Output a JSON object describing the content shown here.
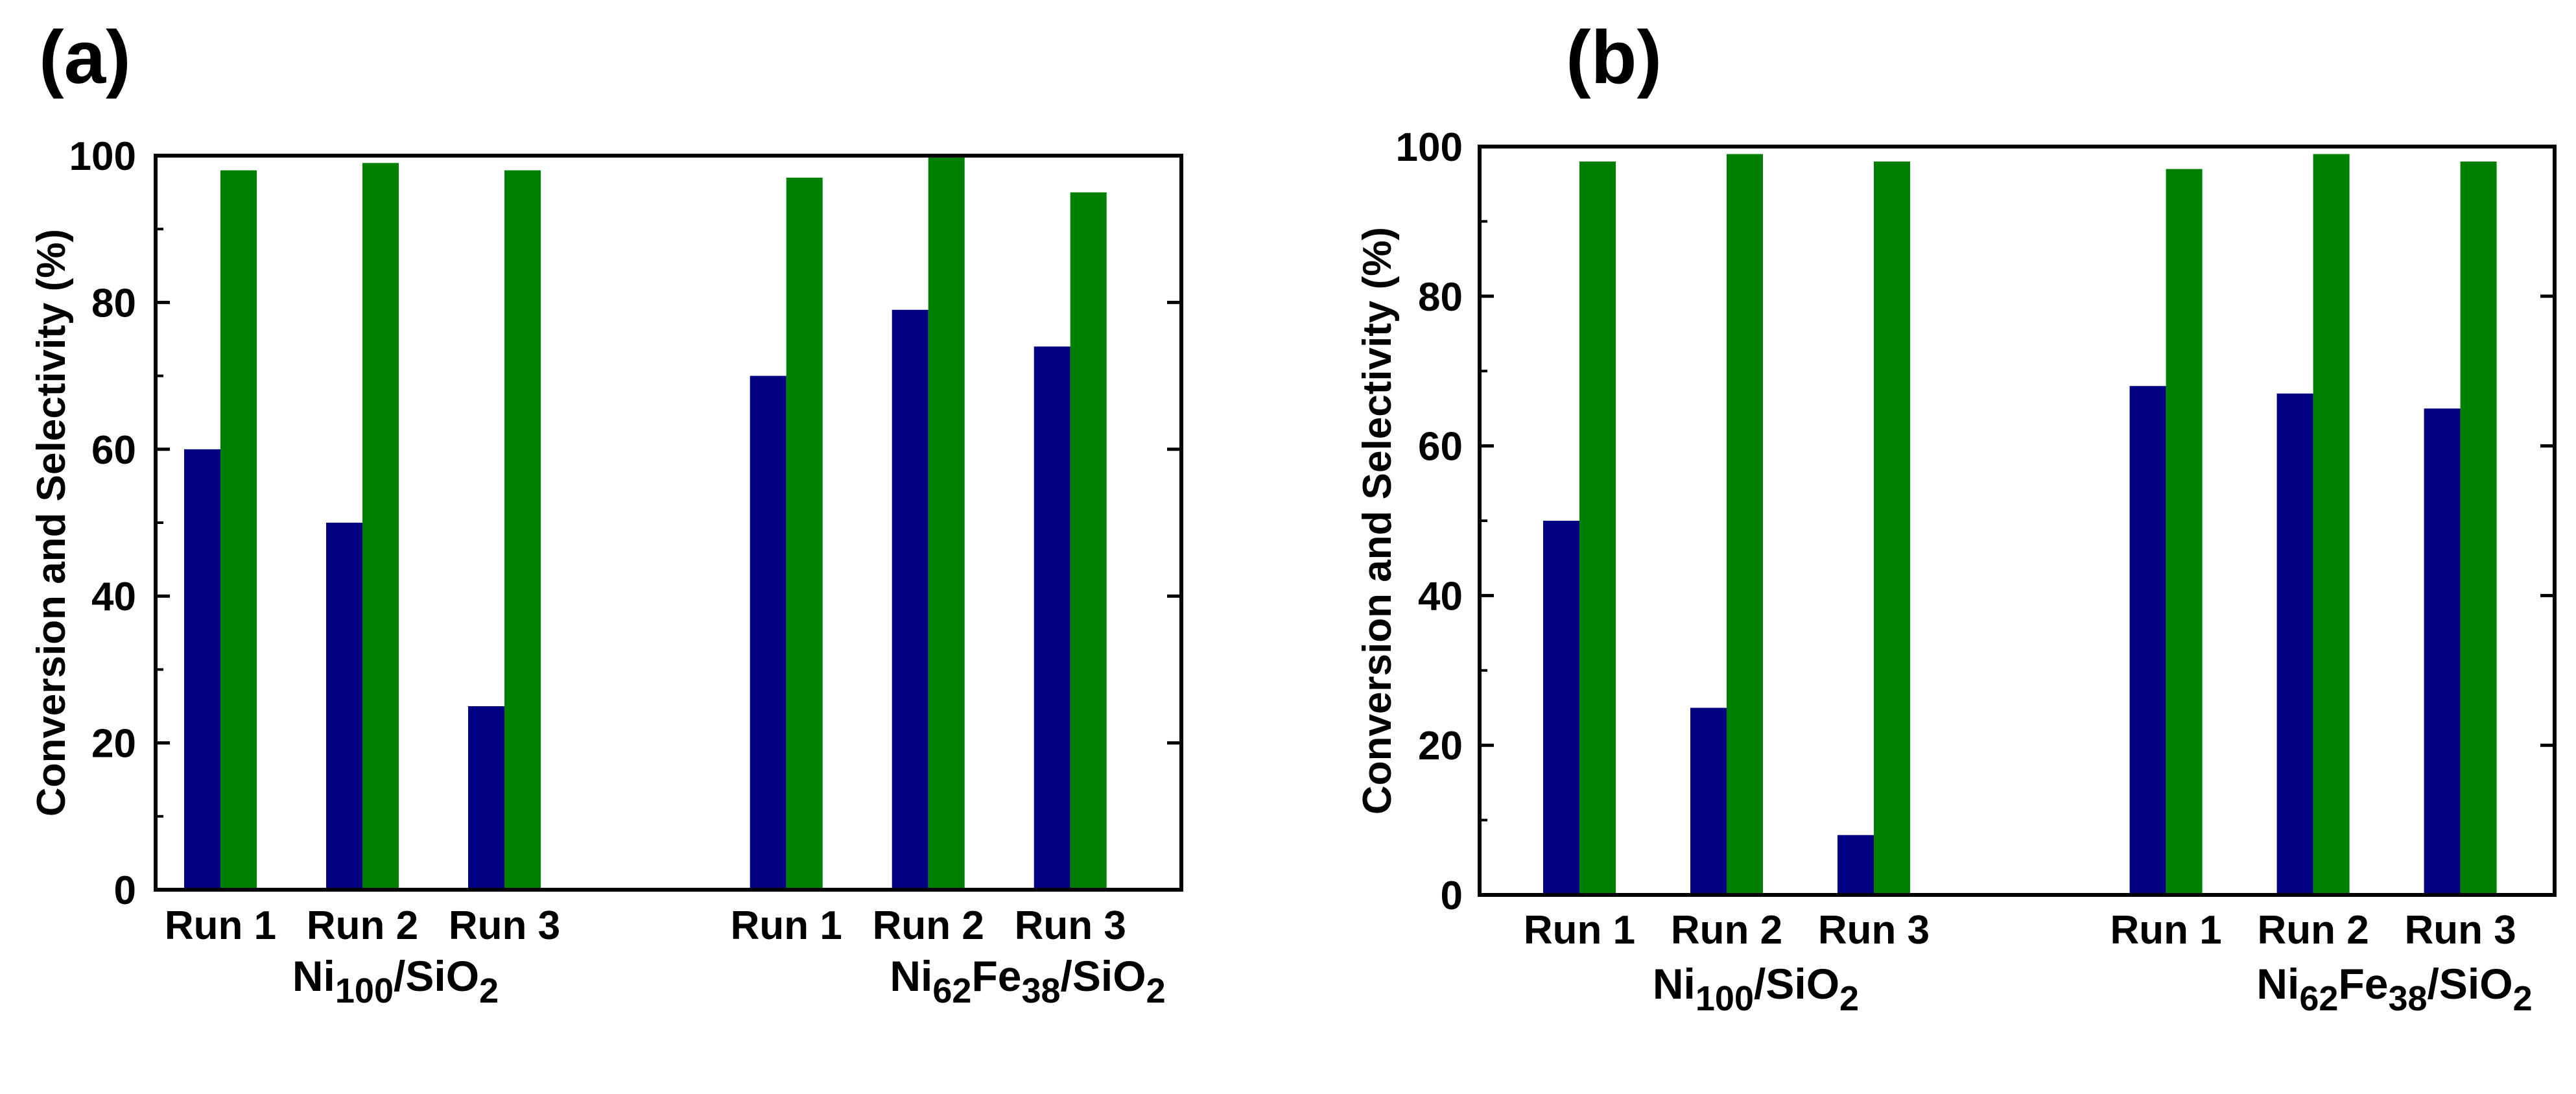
{
  "chart_data": [
    {
      "type": "bar",
      "panel_label": "(a)",
      "categories": [
        "Run 1",
        "Run 2",
        "Run 3",
        "Run 1",
        "Run 2",
        "Run 3"
      ],
      "groups": [
        {
          "base": "Ni",
          "sub1": "100",
          "mid": "/SiO",
          "sub2": "2"
        },
        {
          "base": "Ni",
          "sub1": "62",
          "mid2": "Fe",
          "sub1b": "38",
          "mid": "/SiO",
          "sub2": "2"
        }
      ],
      "series": [
        {
          "name": "Conversion",
          "color": "#000080",
          "values": [
            60,
            50,
            25,
            70,
            79,
            74
          ]
        },
        {
          "name": "Selectivity",
          "color": "#008000",
          "values": [
            98,
            99,
            98,
            97,
            100,
            95
          ]
        }
      ],
      "ylabel": "Conversion and Selectivity (%)",
      "ylim": [
        0,
        100
      ],
      "yticks": [
        "0",
        "20",
        "40",
        "60",
        "80",
        "100"
      ],
      "grid": false
    },
    {
      "type": "bar",
      "panel_label": "(b)",
      "categories": [
        "Run 1",
        "Run 2",
        "Run 3",
        "Run 1",
        "Run 2",
        "Run 3"
      ],
      "groups": [
        {
          "base": "Ni",
          "sub1": "100",
          "mid": "/SiO",
          "sub2": "2"
        },
        {
          "base": "Ni",
          "sub1": "62",
          "mid2": "Fe",
          "sub1b": "38",
          "mid": "/SiO",
          "sub2": "2"
        }
      ],
      "series": [
        {
          "name": "Conversion",
          "color": "#000080",
          "values": [
            50,
            25,
            8,
            68,
            67,
            65
          ]
        },
        {
          "name": "Selectivity",
          "color": "#008000",
          "values": [
            98,
            99,
            98,
            97,
            99,
            98
          ]
        }
      ],
      "ylabel": "Conversion and Selectivity (%)",
      "ylim": [
        0,
        100
      ],
      "yticks": [
        "0",
        "20",
        "40",
        "60",
        "80",
        "100"
      ],
      "grid": false
    }
  ]
}
